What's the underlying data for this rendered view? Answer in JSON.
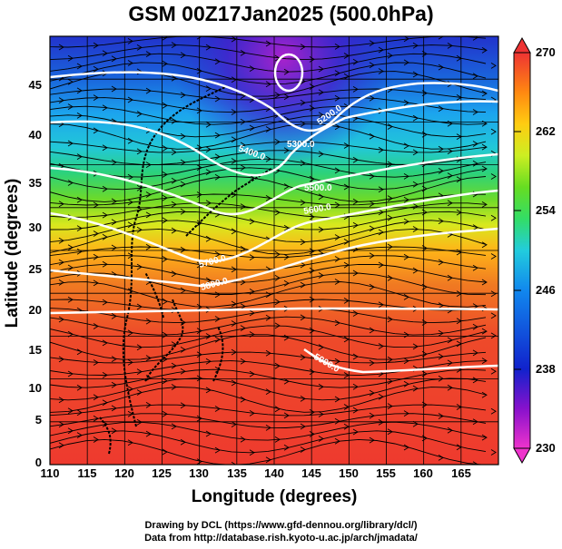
{
  "title": "GSM 00Z17Jan2025 (500.0hPa)",
  "x_axis": {
    "label": "Longitude (degrees)",
    "range": [
      110,
      170
    ],
    "ticks": [
      "110",
      "115",
      "120",
      "125",
      "130",
      "135",
      "140",
      "145",
      "150",
      "155",
      "160",
      "165"
    ]
  },
  "y_axis": {
    "label": "Latitude  (degrees)",
    "range": [
      0,
      50
    ],
    "ticks": [
      "0",
      "5",
      "10",
      "15",
      "20",
      "25",
      "30",
      "35",
      "40",
      "45"
    ]
  },
  "colorbar": {
    "range": [
      230,
      270
    ],
    "ticks": [
      "230",
      "238",
      "246",
      "254",
      "262",
      "270"
    ],
    "colors": [
      "#ee33cc",
      "#8811cc",
      "#1122cc",
      "#1188ee",
      "#22ccdd",
      "#33dd66",
      "#66dd22",
      "#ccee22",
      "#ffcc11",
      "#ff8811",
      "#ee4422",
      "#ee3333"
    ]
  },
  "contour_labels": [
    "5200.0",
    "5300.0",
    "5400.0",
    "5500.0",
    "5600.0",
    "5700.0",
    "5800.0",
    "5900.0"
  ],
  "credits": {
    "line1": "Drawing by DCL (https://www.gfd-dennou.org/library/dcl/)",
    "line2": "Data from http://database.rish.kyoto-u.ac.jp/arch/jmadata/"
  }
}
